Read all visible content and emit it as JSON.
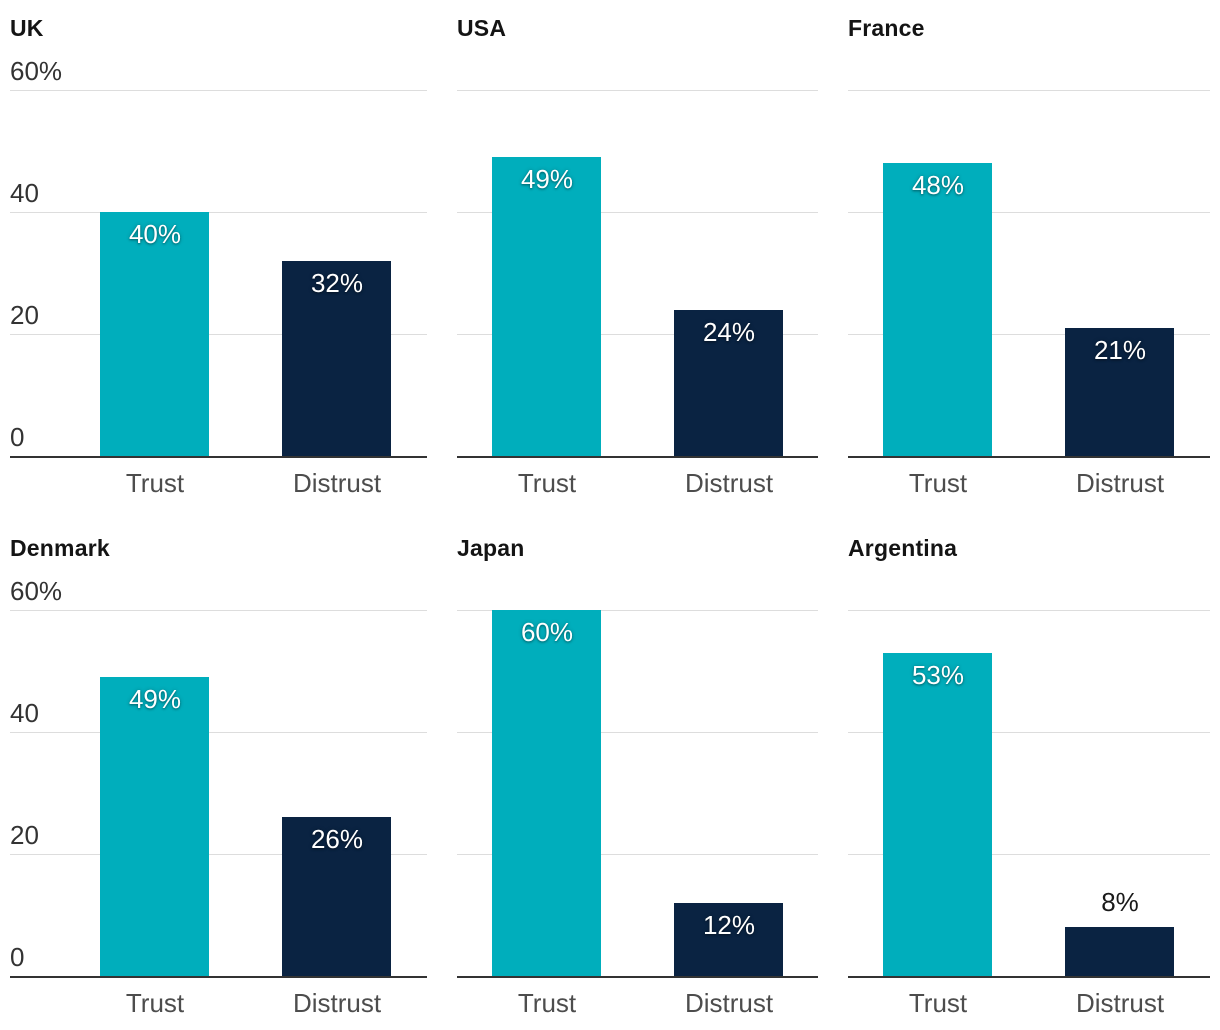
{
  "chart_data": {
    "type": "bar",
    "layout": "small-multiples",
    "categories": [
      "Trust",
      "Distrust"
    ],
    "y_axis": {
      "max": 60,
      "ticks": [
        {
          "value": 60,
          "label": "60%"
        },
        {
          "value": 40,
          "label": "40"
        },
        {
          "value": 20,
          "label": "20"
        },
        {
          "value": 0,
          "label": "0"
        }
      ]
    },
    "grid": true,
    "series_colors": {
      "trust": "#00AEBC",
      "distrust": "#0A2342"
    },
    "panels": [
      {
        "title": "UK",
        "show_ticks": true,
        "values": [
          40,
          32
        ],
        "value_labels": [
          "40%",
          "32%"
        ]
      },
      {
        "title": "USA",
        "show_ticks": false,
        "values": [
          49,
          24
        ],
        "value_labels": [
          "49%",
          "24%"
        ]
      },
      {
        "title": "France",
        "show_ticks": false,
        "values": [
          48,
          21
        ],
        "value_labels": [
          "48%",
          "21%"
        ]
      },
      {
        "title": "Denmark",
        "show_ticks": true,
        "values": [
          49,
          26
        ],
        "value_labels": [
          "49%",
          "26%"
        ]
      },
      {
        "title": "Japan",
        "show_ticks": false,
        "values": [
          60,
          12
        ],
        "value_labels": [
          "60%",
          "12%"
        ]
      },
      {
        "title": "Argentina",
        "show_ticks": false,
        "values": [
          53,
          8
        ],
        "value_labels": [
          "53%",
          "8%"
        ]
      }
    ]
  },
  "style_colors": {
    "gridline": "#dddddd",
    "baseline": "#333333",
    "title_text": "#141414",
    "tick_text": "#333333",
    "x_label_text": "#4d4d4d",
    "value_label_inside": "#ffffff",
    "value_label_outside": "#1a1a1a"
  }
}
